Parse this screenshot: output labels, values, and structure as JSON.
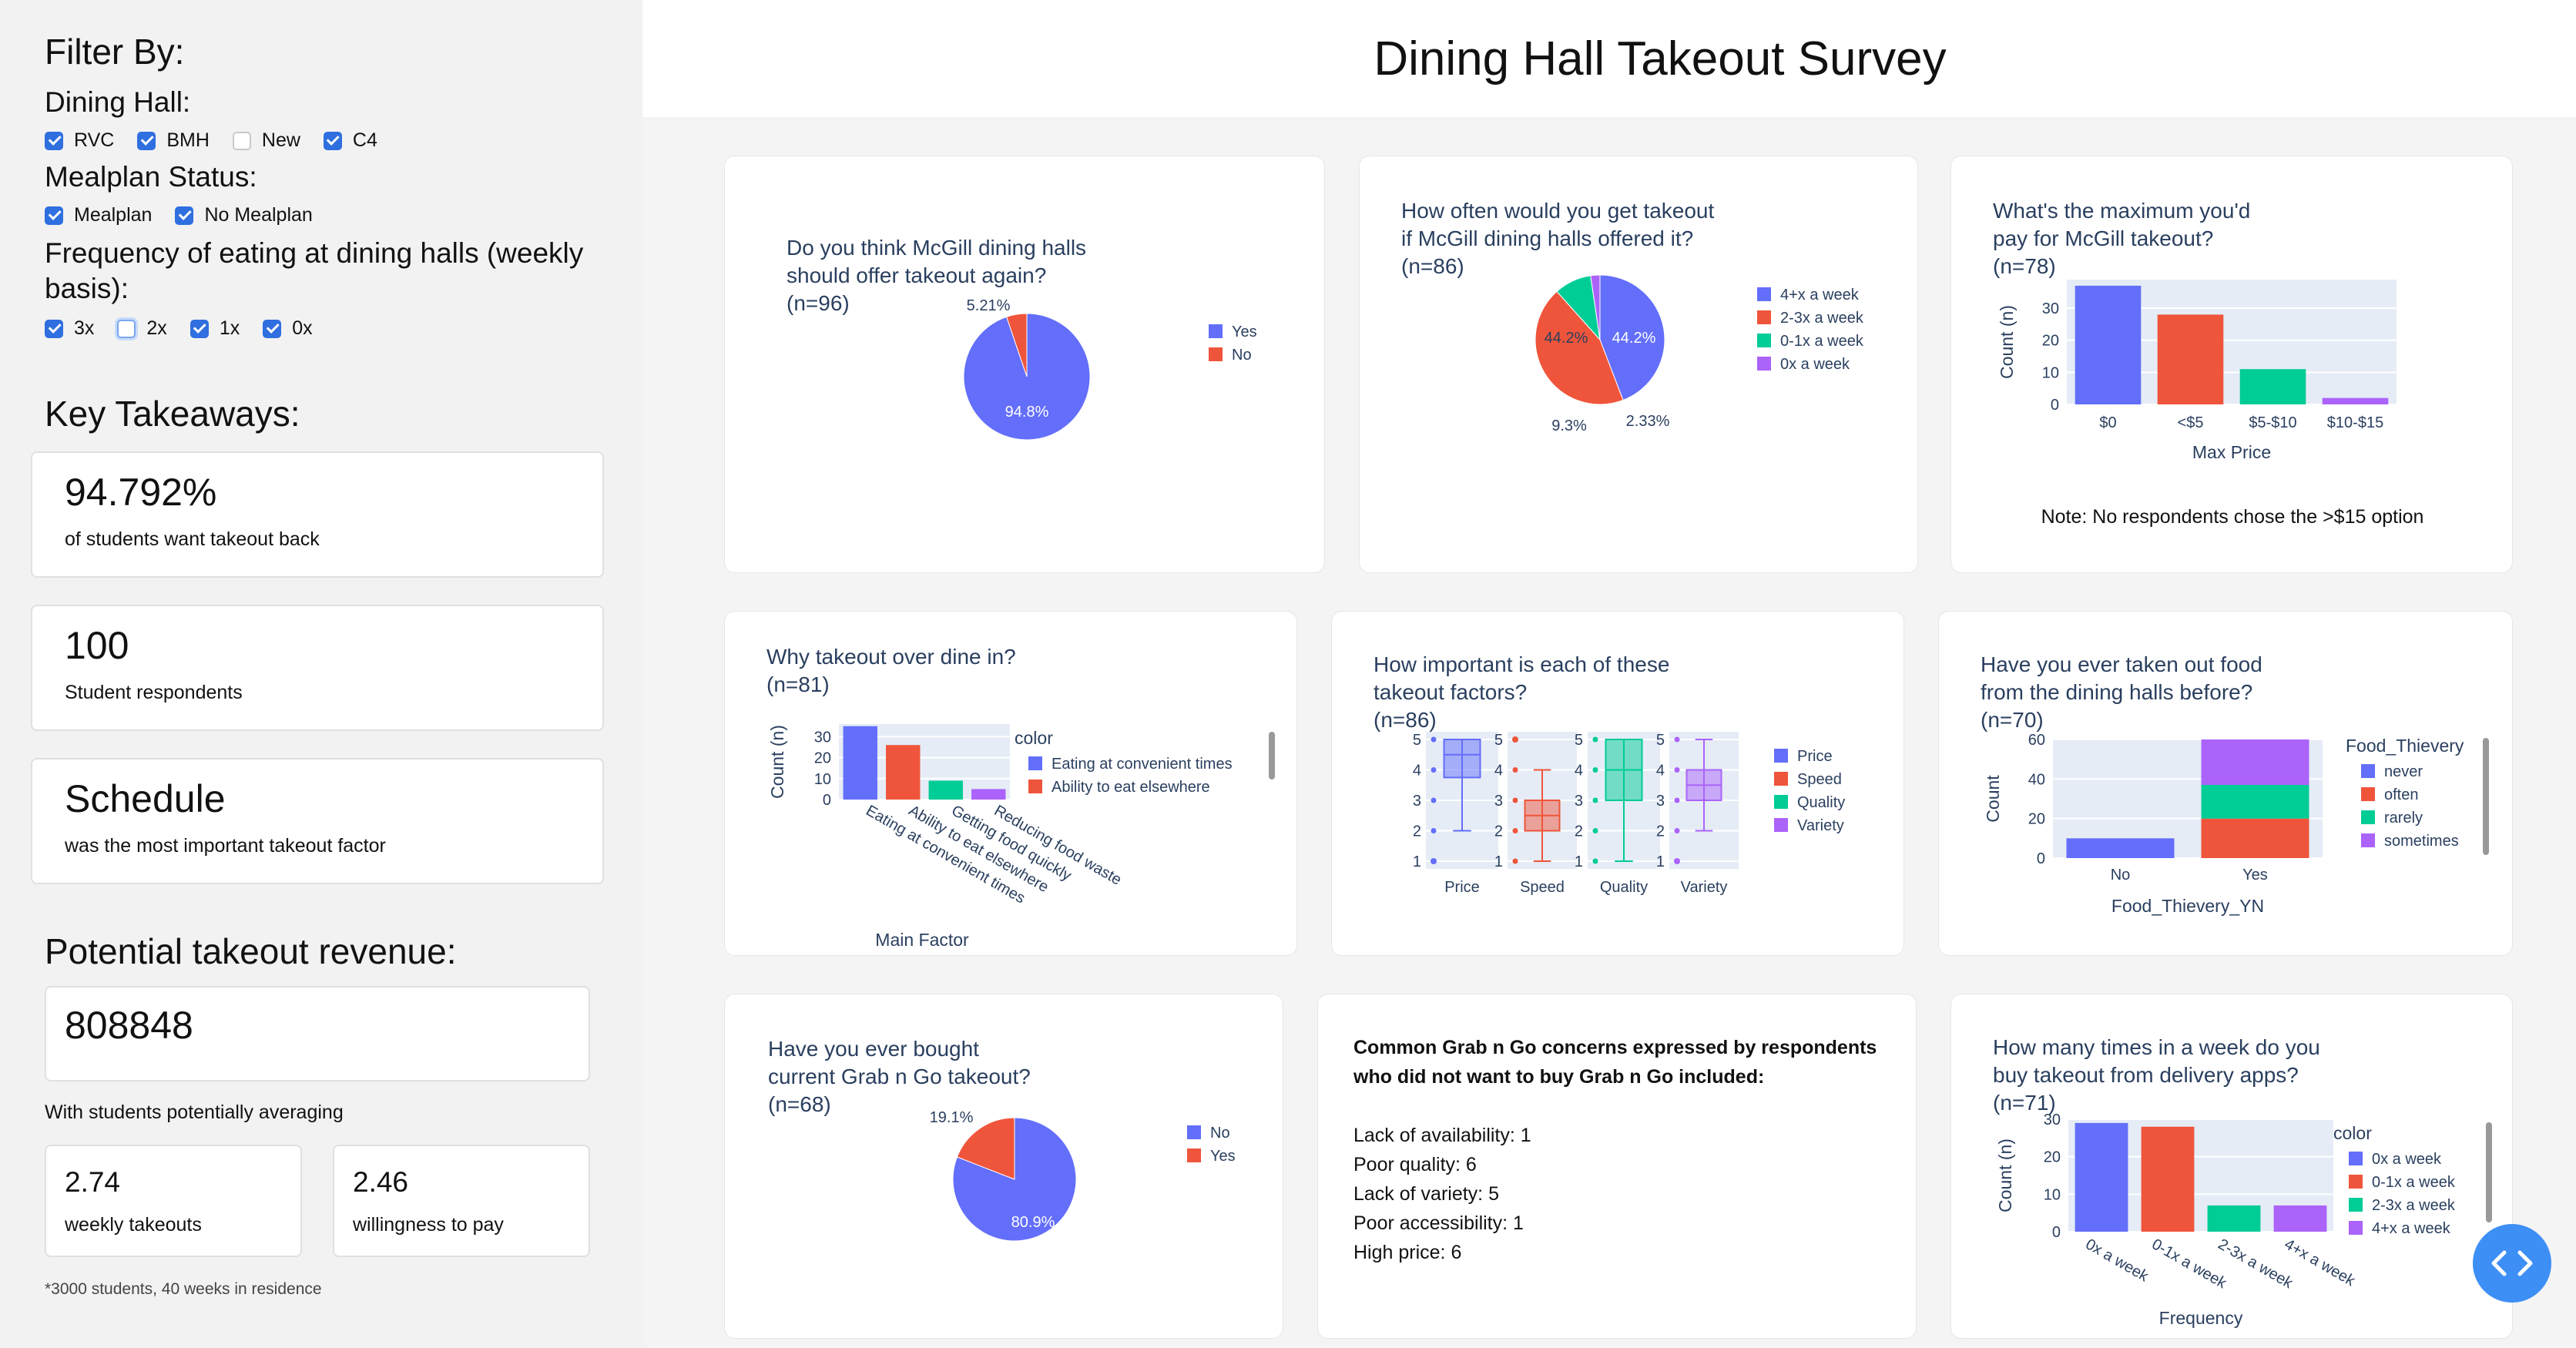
{
  "page_title": "Dining Hall Takeout Survey",
  "sidebar": {
    "filter_heading": "Filter By:",
    "dining_hall_label": "Dining Hall:",
    "dining_halls": [
      {
        "label": "RVC",
        "checked": true
      },
      {
        "label": "BMH",
        "checked": true
      },
      {
        "label": "New",
        "checked": false
      },
      {
        "label": "C4",
        "checked": true
      }
    ],
    "mealplan_label": "Mealplan Status:",
    "mealplan": [
      {
        "label": "Mealplan",
        "checked": true
      },
      {
        "label": "No Mealplan",
        "checked": true
      }
    ],
    "frequency_label": "Frequency of eating at dining halls (weekly basis):",
    "frequency": [
      {
        "label": "3x",
        "checked": true
      },
      {
        "label": "2x",
        "checked": false
      },
      {
        "label": "1x",
        "checked": true
      },
      {
        "label": "0x",
        "checked": true
      }
    ],
    "takeaways_heading": "Key Takeaways:",
    "takeaways": [
      {
        "value": "94.792%",
        "label": "of students want takeout back"
      },
      {
        "value": "100",
        "label": "Student respondents"
      },
      {
        "value": "Schedule",
        "label": "was the most important takeout factor"
      }
    ],
    "revenue_heading": "Potential takeout revenue:",
    "revenue_value": "808848",
    "averaging_text": "With students potentially averaging",
    "weekly_value": "2.74",
    "weekly_label": "weekly takeouts",
    "pay_value": "2.46",
    "pay_label": "willingness to pay",
    "footnote": "*3000 students, 40 weeks in residence"
  },
  "concerns": {
    "heading": "Common Grab n Go concerns expressed by respondents who did not want to buy Grab n Go included:",
    "items": [
      "Lack of availability: 1",
      "Poor quality: 6",
      "Lack of variety: 5",
      "Poor accessibility: 1",
      "High price: 6"
    ]
  },
  "chart_data": [
    {
      "type": "pie",
      "title": [
        "Do you think McGill dining halls",
        " should offer takeout again?",
        "(n=96)"
      ],
      "labels": [
        "Yes",
        "No"
      ],
      "values": [
        94.8,
        5.21
      ],
      "value_labels": [
        "94.8%",
        "5.21%"
      ],
      "colors": [
        "#636efa",
        "#ef553b"
      ],
      "legend": "right"
    },
    {
      "type": "pie",
      "title": [
        "How often would you get takeout",
        " if McGill dining halls offered it?",
        "(n=86)"
      ],
      "labels": [
        "4+x a week",
        "2-3x a week",
        "0-1x a week",
        "0x a week"
      ],
      "values": [
        44.2,
        44.2,
        9.3,
        2.33
      ],
      "value_labels": [
        "44.2%",
        "44.2%",
        "9.3%",
        "2.33%"
      ],
      "colors": [
        "#636efa",
        "#ef553b",
        "#00cc96",
        "#ab63fa"
      ],
      "legend": "right"
    },
    {
      "type": "bar",
      "title": [
        "What's the maximum you'd",
        " pay for McGill takeout?",
        "(n=78)"
      ],
      "categories": [
        "$0",
        "<$5",
        "$5-$10",
        "$10-$15"
      ],
      "values": [
        37,
        28,
        11,
        2
      ],
      "colors": [
        "#636efa",
        "#ef553b",
        "#00cc96",
        "#ab63fa"
      ],
      "xlabel": "Max Price",
      "ylabel": "Count (n)",
      "yticks": [
        0,
        10,
        20,
        30
      ],
      "ylim": [
        0,
        38.9
      ],
      "note": "Note: No respondents chose the >$15 option"
    },
    {
      "type": "bar",
      "title": [
        "Why takeout over dine in?",
        "(n=81)"
      ],
      "categories": [
        "Eating at convenient times",
        "Ability to eat elsewhere",
        "Getting food quickly",
        "Reducing food waste"
      ],
      "values": [
        35,
        26,
        9,
        5
      ],
      "colors": [
        "#636efa",
        "#ef553b",
        "#00cc96",
        "#ab63fa"
      ],
      "xlabel": "Main Factor",
      "ylabel": "Count (n)",
      "yticks": [
        0,
        10,
        20,
        30
      ],
      "ylim": [
        0,
        36
      ],
      "legend_title": "color",
      "legend": [
        "Eating at convenient times",
        "Ability to eat elsewhere"
      ]
    },
    {
      "type": "box",
      "title": [
        "How important is each of these",
        " takeout factors?",
        "(n=86)"
      ],
      "categories": [
        "Price",
        "Speed",
        "Quality",
        "Variety"
      ],
      "stats": [
        {
          "min": 2,
          "q1": 3.75,
          "median": 4.5,
          "q3": 5,
          "max": 5,
          "outliers": [
            1
          ]
        },
        {
          "min": 1,
          "q1": 2,
          "median": 2.5,
          "q3": 3,
          "max": 4,
          "outliers": [
            5
          ]
        },
        {
          "min": 1,
          "q1": 3,
          "median": 4,
          "q3": 5,
          "max": 5,
          "outliers": []
        },
        {
          "min": 2,
          "q1": 3,
          "median": 3.5,
          "q3": 4,
          "max": 5,
          "outliers": [
            1
          ]
        }
      ],
      "colors": [
        "#636efa",
        "#ef553b",
        "#00cc96",
        "#ab63fa"
      ],
      "yticks": [
        1,
        2,
        3,
        4,
        5
      ],
      "legend": "right"
    },
    {
      "type": "bar",
      "title": [
        "Have you ever taken out food",
        " from the dining halls before?",
        "(n=70)"
      ],
      "categories": [
        "No",
        "Yes"
      ],
      "series": [
        {
          "name": "never",
          "values": [
            10,
            0
          ]
        },
        {
          "name": "often",
          "values": [
            0,
            20
          ]
        },
        {
          "name": "rarely",
          "values": [
            0,
            17
          ]
        },
        {
          "name": "sometimes",
          "values": [
            0,
            23
          ]
        }
      ],
      "colors": [
        "#636efa",
        "#ef553b",
        "#00cc96",
        "#ab63fa"
      ],
      "xlabel": "Food_Thievery_YN",
      "ylabel": "Count",
      "yticks": [
        0,
        20,
        40,
        60
      ],
      "ylim": [
        0,
        60
      ],
      "legend_title": "Food_Thievery"
    },
    {
      "type": "pie",
      "title": [
        "Have you ever bought",
        " current Grab n Go takeout?",
        "(n=68)"
      ],
      "labels": [
        "No",
        "Yes"
      ],
      "values": [
        80.9,
        19.1
      ],
      "value_labels": [
        "80.9%",
        "19.1%"
      ],
      "colors": [
        "#636efa",
        "#ef553b"
      ],
      "legend": "right"
    },
    {
      "type": "bar",
      "title": [
        "How many times in a week do you",
        "buy takeout from delivery apps?",
        "(n=71)"
      ],
      "categories": [
        "0x a week",
        "0-1x a week",
        "2-3x a week",
        "4+x a week"
      ],
      "values": [
        29,
        28,
        7,
        7
      ],
      "colors": [
        "#636efa",
        "#ef553b",
        "#00cc96",
        "#ab63fa"
      ],
      "xlabel": "Frequency",
      "ylabel": "Count (n)",
      "yticks": [
        0,
        10,
        20,
        30
      ],
      "ylim": [
        0,
        30
      ],
      "legend_title": "color",
      "legend": [
        "0x a week",
        "0-1x a week",
        "2-3x a week",
        "4+x a week"
      ]
    }
  ]
}
